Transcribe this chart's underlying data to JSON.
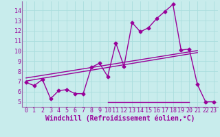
{
  "xlabel": "Windchill (Refroidissement éolien,°C)",
  "background_color": "#c8ecec",
  "line_color": "#990099",
  "grid_color": "#aadddd",
  "spine_color": "#9966aa",
  "xlim": [
    -0.5,
    23.5
  ],
  "ylim": [
    4.5,
    14.9
  ],
  "xticks": [
    0,
    1,
    2,
    3,
    4,
    5,
    6,
    7,
    8,
    9,
    10,
    11,
    12,
    13,
    14,
    15,
    16,
    17,
    18,
    19,
    20,
    21,
    22,
    23
  ],
  "yticks": [
    5,
    6,
    7,
    8,
    9,
    10,
    11,
    12,
    13,
    14
  ],
  "series1_x": [
    0,
    1,
    2,
    3,
    4,
    5,
    6,
    7,
    8,
    9,
    10,
    11,
    12,
    13,
    14,
    15,
    16,
    17,
    18,
    19,
    20,
    21,
    22,
    23
  ],
  "series1_y": [
    6.9,
    6.6,
    7.2,
    5.3,
    6.1,
    6.2,
    5.8,
    5.8,
    8.4,
    8.8,
    7.5,
    10.8,
    8.5,
    12.8,
    11.9,
    12.3,
    13.2,
    13.9,
    14.6,
    10.1,
    10.2,
    6.7,
    5.0,
    5.0
  ],
  "series2_x": [
    0,
    21
  ],
  "series2_y": [
    7.05,
    9.85
  ],
  "series3_x": [
    0,
    21
  ],
  "series3_y": [
    7.35,
    10.05
  ],
  "series4_x": [
    10,
    20
  ],
  "series4_y": [
    5.0,
    5.0
  ],
  "markersize": 2.5,
  "linewidth": 1.0,
  "xlabel_fontsize": 7,
  "tick_fontsize": 6
}
